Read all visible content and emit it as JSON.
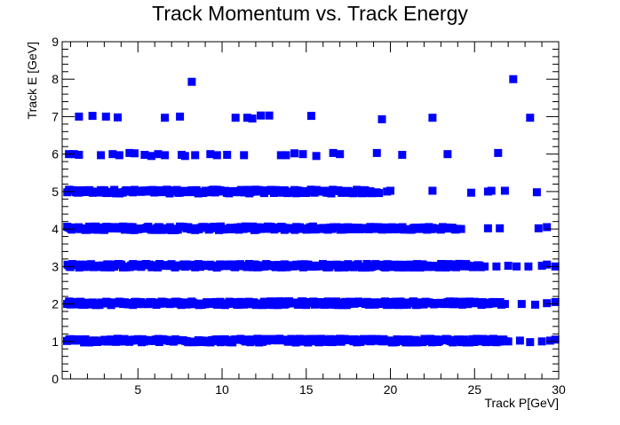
{
  "chart_data": {
    "type": "scatter",
    "title": "Track Momentum vs. Track Energy",
    "xlabel": "Track P[GeV]",
    "ylabel": "Track E [GeV]",
    "xlim": [
      0.5,
      30
    ],
    "ylim": [
      0,
      9
    ],
    "x_ticks": [
      5,
      10,
      15,
      20,
      25,
      30
    ],
    "y_ticks": [
      0,
      1,
      2,
      3,
      4,
      5,
      6,
      7,
      8,
      9
    ],
    "grid": false,
    "legend": "none",
    "marker": "square",
    "marker_color": "#0000ff",
    "series": [
      {
        "points": [
          [
            8.2,
            7.93
          ],
          [
            27.3,
            8.0
          ],
          [
            1.5,
            7.0
          ],
          [
            2.3,
            7.02
          ],
          [
            3.1,
            7.0
          ],
          [
            3.8,
            6.98
          ],
          [
            6.6,
            6.97
          ],
          [
            7.5,
            7.0
          ],
          [
            10.8,
            6.97
          ],
          [
            11.5,
            6.97
          ],
          [
            11.8,
            6.95
          ],
          [
            12.3,
            7.03
          ],
          [
            12.8,
            7.03
          ],
          [
            15.3,
            7.02
          ],
          [
            19.5,
            6.93
          ],
          [
            22.5,
            6.97
          ],
          [
            28.3,
            6.97
          ],
          [
            0.9,
            6.0
          ],
          [
            1.2,
            6.0
          ],
          [
            1.5,
            5.98
          ],
          [
            2.8,
            5.97
          ],
          [
            3.5,
            6.0
          ],
          [
            3.9,
            5.97
          ],
          [
            4.5,
            6.03
          ],
          [
            4.8,
            6.02
          ],
          [
            5.4,
            5.98
          ],
          [
            5.8,
            5.95
          ],
          [
            6.2,
            6.0
          ],
          [
            6.6,
            5.97
          ],
          [
            7.6,
            5.98
          ],
          [
            7.8,
            5.95
          ],
          [
            8.4,
            5.97
          ],
          [
            9.3,
            6.0
          ],
          [
            9.7,
            5.97
          ],
          [
            10.3,
            5.98
          ],
          [
            11.3,
            5.97
          ],
          [
            13.5,
            5.97
          ],
          [
            13.8,
            5.97
          ],
          [
            14.3,
            6.02
          ],
          [
            14.8,
            6.0
          ],
          [
            15.6,
            5.95
          ],
          [
            16.6,
            6.03
          ],
          [
            17.0,
            6.0
          ],
          [
            19.2,
            6.03
          ],
          [
            20.7,
            5.98
          ],
          [
            23.4,
            6.0
          ],
          [
            26.4,
            6.03
          ],
          [
            19.8,
            5.0
          ],
          [
            20.0,
            5.02
          ],
          [
            22.5,
            5.02
          ],
          [
            24.8,
            4.97
          ],
          [
            25.8,
            5.0
          ],
          [
            26.0,
            5.02
          ],
          [
            26.8,
            5.02
          ],
          [
            28.7,
            4.98
          ],
          [
            15.8,
            4.02
          ],
          [
            16.5,
            4.0
          ],
          [
            19.8,
            4.0
          ],
          [
            20.5,
            4.02
          ],
          [
            24.2,
            4.0
          ],
          [
            25.8,
            4.02
          ],
          [
            26.5,
            4.02
          ],
          [
            28.8,
            4.02
          ],
          [
            29.3,
            4.05
          ],
          [
            25.6,
            3.0
          ],
          [
            26.3,
            3.0
          ],
          [
            27.0,
            3.02
          ],
          [
            27.5,
            3.0
          ],
          [
            28.2,
            3.0
          ],
          [
            29.0,
            3.02
          ],
          [
            29.3,
            3.05
          ],
          [
            29.8,
            3.0
          ],
          [
            26.8,
            2.0
          ],
          [
            27.8,
            2.0
          ],
          [
            28.6,
            1.98
          ],
          [
            29.3,
            2.02
          ],
          [
            29.8,
            2.05
          ],
          [
            27.0,
            1.0
          ],
          [
            27.7,
            1.02
          ],
          [
            28.3,
            0.98
          ],
          [
            29.0,
            1.0
          ],
          [
            29.5,
            1.02
          ],
          [
            29.8,
            1.05
          ]
        ]
      }
    ],
    "bands": [
      {
        "y": 5.0,
        "x_from": 0.8,
        "x_to": 19.3,
        "jitter": 0.05
      },
      {
        "y": 4.02,
        "x_from": 0.8,
        "x_to": 15.5,
        "jitter": 0.05
      },
      {
        "y": 4.02,
        "x_from": 15.5,
        "x_to": 24.0,
        "jitter": 0.04
      },
      {
        "y": 3.02,
        "x_from": 0.8,
        "x_to": 25.4,
        "jitter": 0.05
      },
      {
        "y": 2.02,
        "x_from": 0.8,
        "x_to": 26.6,
        "jitter": 0.05
      },
      {
        "y": 1.02,
        "x_from": 0.8,
        "x_to": 26.8,
        "jitter": 0.05
      }
    ]
  }
}
